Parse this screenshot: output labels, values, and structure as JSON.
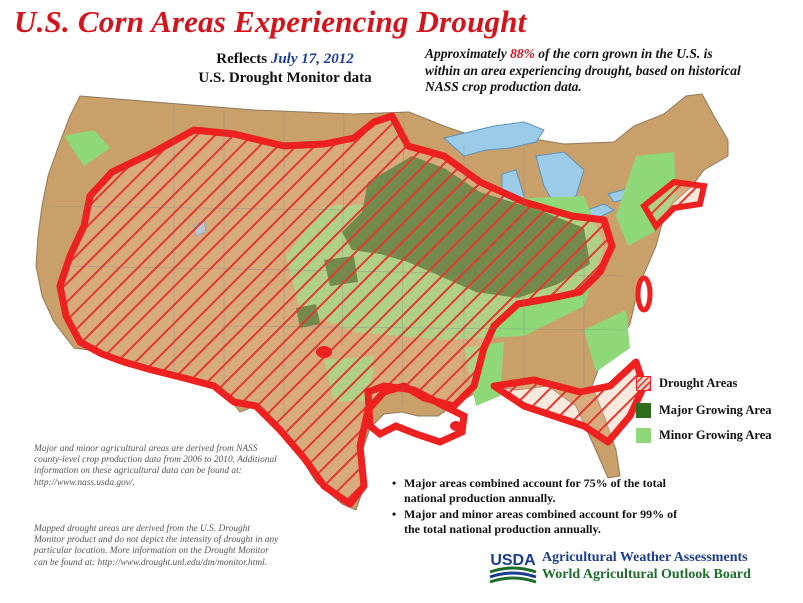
{
  "title": "U.S. Corn Areas Experiencing Drought",
  "subtitle": {
    "prefix": "Reflects",
    "date": "July 17, 2012",
    "source": "U.S. Drought Monitor data"
  },
  "summary": {
    "lead": "Approximately",
    "percent": "88%",
    "rest": "of the corn grown in the U.S. is within an area experiencing drought, based on historical NASS crop production data."
  },
  "legend": [
    {
      "label": "Drought Areas",
      "color": "#e42626"
    },
    {
      "label": "Major Growing Area",
      "color": "#2e6d1c"
    },
    {
      "label": "Minor Growing Area",
      "color": "#8ed87a"
    }
  ],
  "notes": [
    "Major areas combined account for 75% of the total national production annually.",
    "Major and minor areas combined account for 99% of the total national production annually."
  ],
  "footnotes": {
    "agricultural": "Major and minor agricultural areas are derived from NASS county-level crop production data from 2006 to 2010. Additional information on these agricultural data can be found at: http://www.nass.usda.gov/.",
    "drought": "Mapped drought areas are derived from the U.S. Drought Monitor product and do not depict the intensity of drought in any particular location. More information on the Drought Monitor can be found at: http://www.drought.unl.edu/dm/monitor.html."
  },
  "credits": {
    "logo_text": "USDA",
    "line1": "Agricultural Weather Assessments",
    "line2": "World Agricultural Outlook Board"
  },
  "colors": {
    "land": "#c9a06a",
    "water": "#9ccbe8",
    "drought_outline": "#e42626",
    "major_area": "#2e6d1c",
    "minor_area": "#8ed87a",
    "title_red": "#d4141c"
  }
}
